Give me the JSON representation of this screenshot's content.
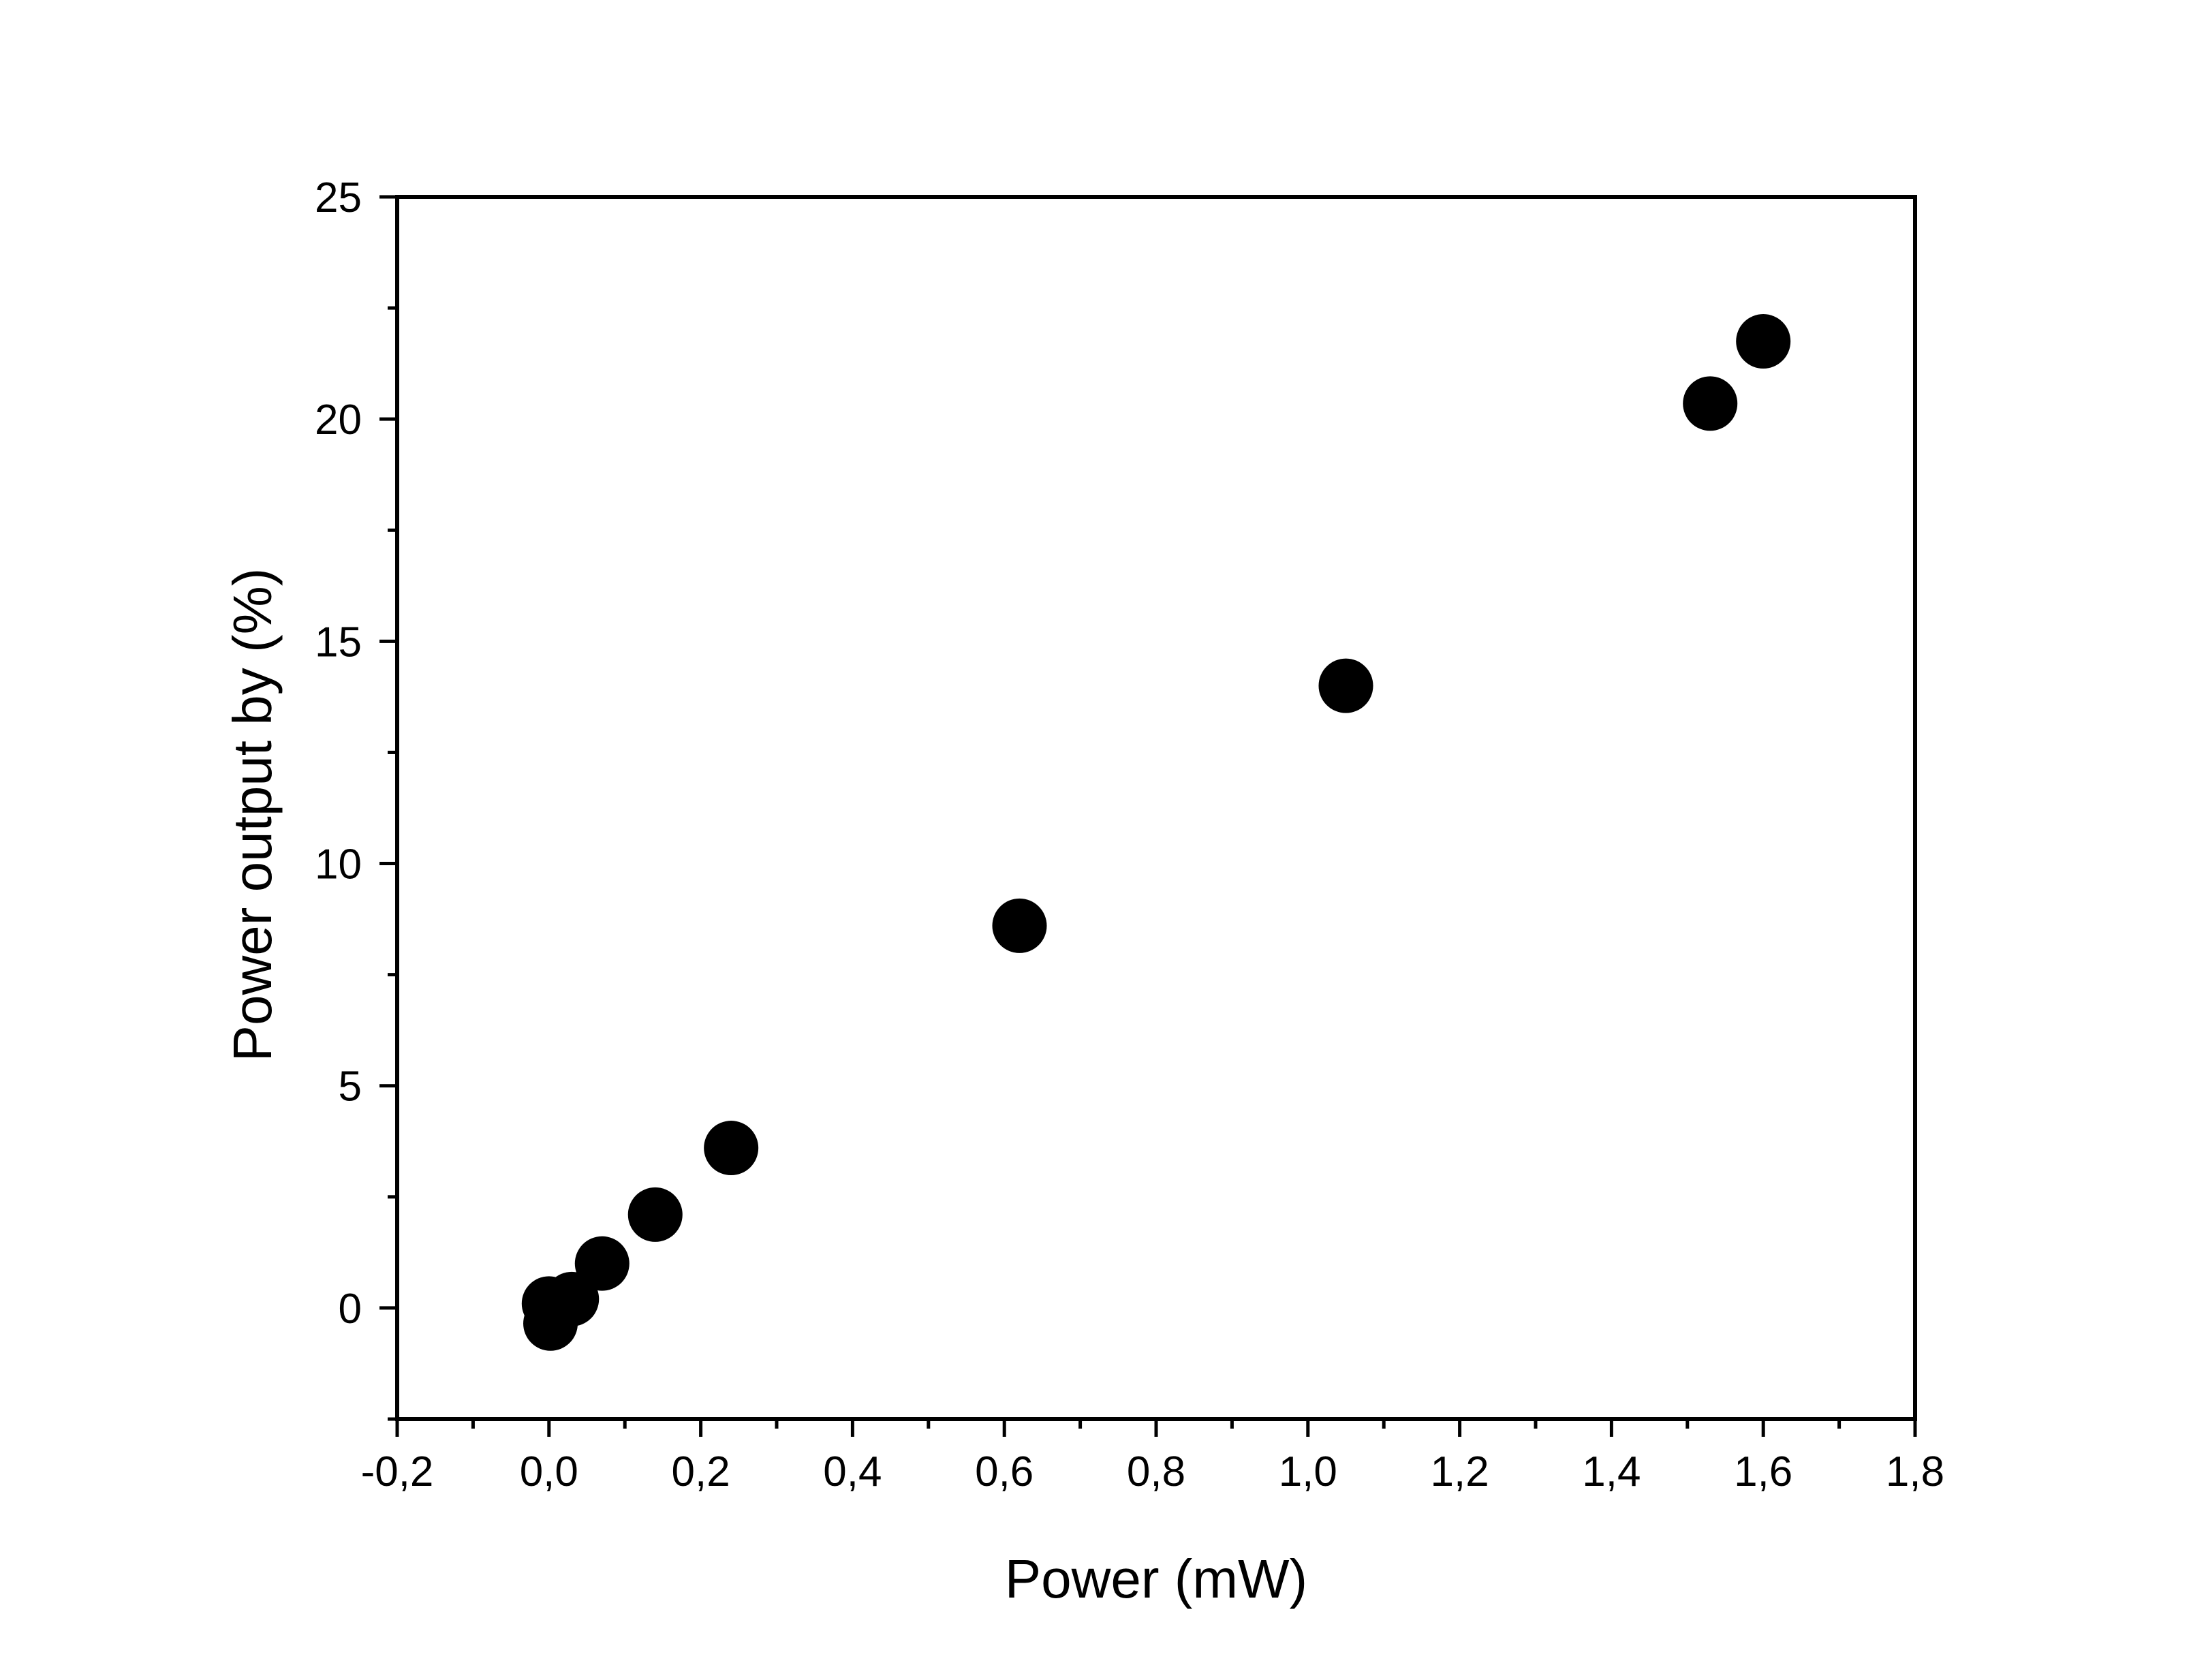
{
  "chart_data": {
    "type": "scatter",
    "title": "",
    "xlabel": "Power (mW)",
    "ylabel": "Power output by (%)",
    "xlim": [
      -0.2,
      1.8
    ],
    "ylim": [
      -2.5,
      25
    ],
    "x_ticks": [
      -0.2,
      0.0,
      0.2,
      0.4,
      0.6,
      0.8,
      1.0,
      1.2,
      1.4,
      1.6,
      1.8
    ],
    "x_tick_labels": [
      "-0,2",
      "0,0",
      "0,2",
      "0,4",
      "0,6",
      "0,8",
      "1,0",
      "1,2",
      "1,4",
      "1,6",
      "1,8"
    ],
    "y_ticks": [
      0,
      5,
      10,
      15,
      20,
      25
    ],
    "y_tick_labels": [
      "0",
      "5",
      "10",
      "15",
      "20",
      "25"
    ],
    "grid": false,
    "legend": "none",
    "marker_color": "#000000",
    "series": [
      {
        "points": [
          {
            "x": 0.0,
            "y": 0.1
          },
          {
            "x": 0.002,
            "y": -0.35
          },
          {
            "x": 0.03,
            "y": 0.2
          },
          {
            "x": 0.07,
            "y": 1.0
          },
          {
            "x": 0.14,
            "y": 2.1
          },
          {
            "x": 0.24,
            "y": 3.6
          },
          {
            "x": 0.62,
            "y": 8.6
          },
          {
            "x": 1.05,
            "y": 14.0
          },
          {
            "x": 1.53,
            "y": 20.35
          },
          {
            "x": 1.6,
            "y": 21.75
          }
        ]
      }
    ]
  }
}
